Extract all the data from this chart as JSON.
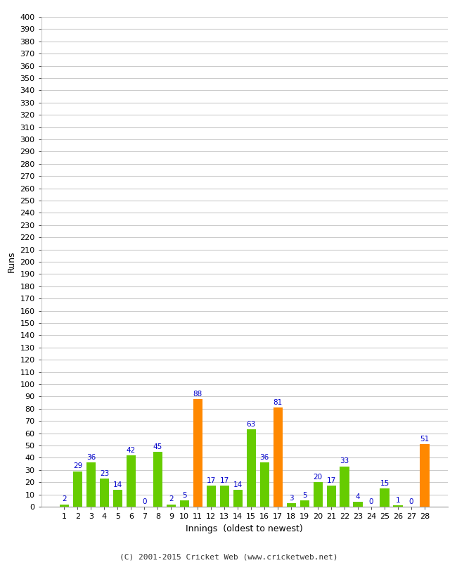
{
  "innings": [
    1,
    2,
    3,
    4,
    5,
    6,
    7,
    8,
    9,
    10,
    11,
    12,
    13,
    14,
    15,
    16,
    17,
    18,
    19,
    20,
    21,
    22,
    23,
    24,
    25,
    26,
    27,
    28
  ],
  "values": [
    2,
    29,
    36,
    23,
    14,
    42,
    0,
    45,
    2,
    5,
    88,
    17,
    17,
    14,
    63,
    36,
    81,
    3,
    5,
    20,
    17,
    33,
    4,
    0,
    15,
    1,
    0,
    51
  ],
  "orange_indices": [
    10,
    16,
    27
  ],
  "bar_color_green": "#66cc00",
  "bar_color_orange": "#ff8800",
  "label_color": "#0000cc",
  "ylabel": "Runs",
  "xlabel": "Innings  (oldest to newest)",
  "footer": "(C) 2001-2015 Cricket Web (www.cricketweb.net)",
  "ylim": [
    0,
    400
  ],
  "ytick_step": 10,
  "background_color": "#ffffff",
  "grid_color": "#cccccc",
  "label_fontsize": 7.5,
  "axis_fontsize": 8,
  "footer_color": "#333333"
}
